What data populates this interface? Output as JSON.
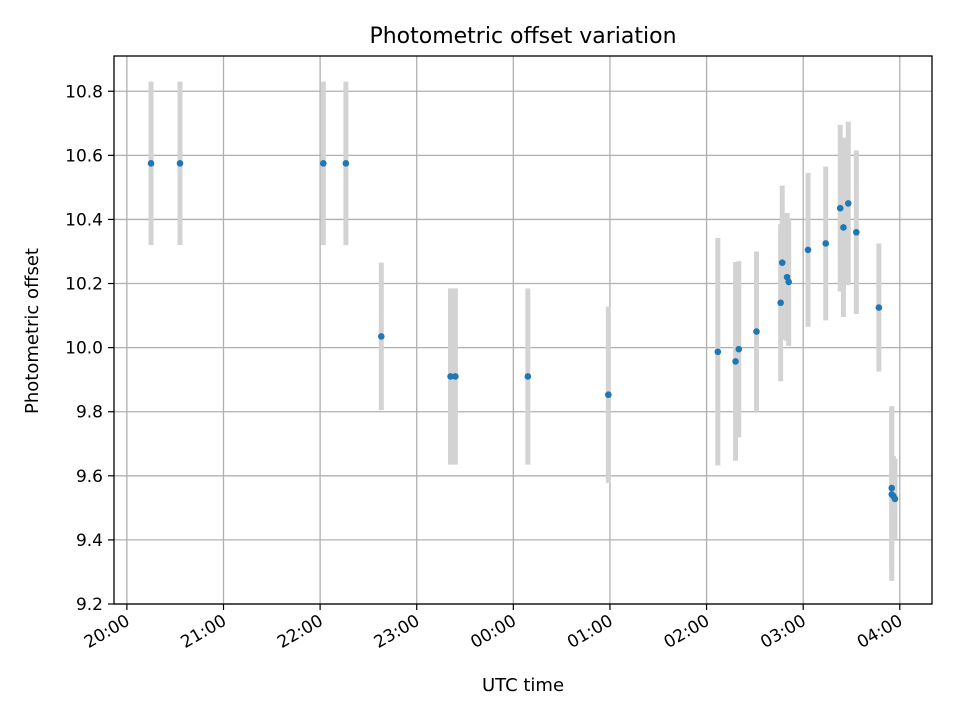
{
  "chart_data": {
    "type": "scatter",
    "title": "Photometric offset variation",
    "xlabel": "UTC time",
    "ylabel": "Photometric offset",
    "grid": true,
    "legend": "none",
    "x_axis": {
      "type": "time",
      "min": "19:52",
      "max": "04:20",
      "ticks": [
        "20:00",
        "21:00",
        "22:00",
        "23:00",
        "00:00",
        "01:00",
        "02:00",
        "03:00",
        "04:00"
      ]
    },
    "y_axis": {
      "min": 9.2,
      "max": 10.91,
      "ticks": [
        "9.2",
        "9.4",
        "9.6",
        "9.8",
        "10.0",
        "10.2",
        "10.4",
        "10.6",
        "10.8"
      ]
    },
    "series": [
      {
        "color": "#1f77b4",
        "error_color": "#d3d3d3",
        "points": [
          {
            "x": "20:15",
            "y": 10.575,
            "err": 0.255
          },
          {
            "x": "20:33",
            "y": 10.575,
            "err": 0.255
          },
          {
            "x": "22:02",
            "y": 10.575,
            "err": 0.255
          },
          {
            "x": "22:16",
            "y": 10.575,
            "err": 0.255
          },
          {
            "x": "22:38",
            "y": 10.035,
            "err": 0.23
          },
          {
            "x": "23:21",
            "y": 9.91,
            "err": 0.275
          },
          {
            "x": "23:24",
            "y": 9.91,
            "err": 0.275
          },
          {
            "x": "00:09",
            "y": 9.91,
            "err": 0.275
          },
          {
            "x": "00:59",
            "y": 9.853,
            "err": 0.275
          },
          {
            "x": "02:07",
            "y": 9.987,
            "err": 0.355
          },
          {
            "x": "02:18",
            "y": 9.957,
            "err": 0.31
          },
          {
            "x": "02:20",
            "y": 9.995,
            "err": 0.275
          },
          {
            "x": "02:31",
            "y": 10.05,
            "err": 0.25
          },
          {
            "x": "02:46",
            "y": 10.14,
            "err": 0.245
          },
          {
            "x": "02:47",
            "y": 10.265,
            "err": 0.24
          },
          {
            "x": "02:50",
            "y": 10.22,
            "err": 0.2
          },
          {
            "x": "02:51",
            "y": 10.205,
            "err": 0.2
          },
          {
            "x": "03:03",
            "y": 10.305,
            "err": 0.24
          },
          {
            "x": "03:14",
            "y": 10.325,
            "err": 0.24
          },
          {
            "x": "03:23",
            "y": 10.435,
            "err": 0.26
          },
          {
            "x": "03:25",
            "y": 10.375,
            "err": 0.28
          },
          {
            "x": "03:28",
            "y": 10.45,
            "err": 0.255
          },
          {
            "x": "03:33",
            "y": 10.36,
            "err": 0.255
          },
          {
            "x": "03:47",
            "y": 10.125,
            "err": 0.2
          },
          {
            "x": "03:55",
            "y": 9.562,
            "err": 0.255
          },
          {
            "x": "03:55",
            "y": 9.542,
            "err": 0.27
          },
          {
            "x": "03:56",
            "y": 9.537,
            "err": 0.125
          },
          {
            "x": "03:57",
            "y": 9.528,
            "err": 0.125
          }
        ]
      }
    ]
  }
}
